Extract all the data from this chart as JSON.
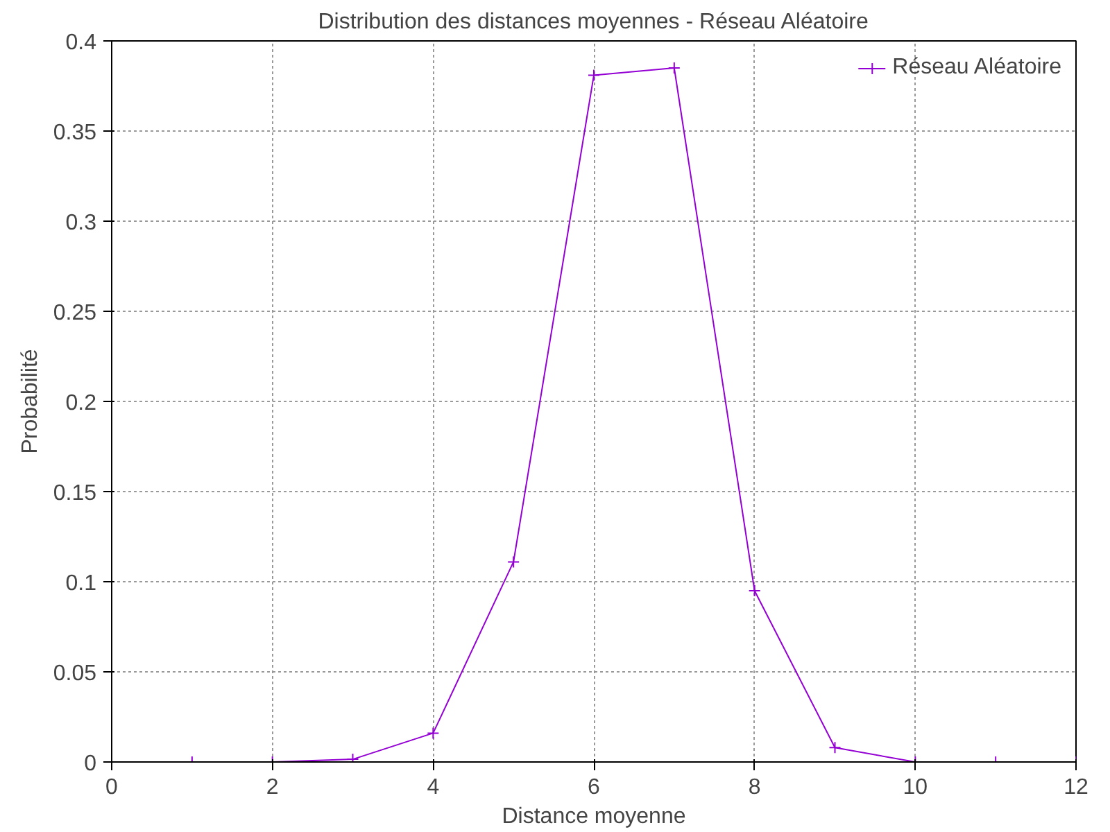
{
  "chart_data": {
    "type": "line",
    "title": "Distribution des distances moyennes - Réseau Aléatoire",
    "xlabel": "Distance moyenne",
    "ylabel": "Probabilité",
    "x": [
      1,
      2,
      3,
      4,
      5,
      6,
      7,
      8,
      9,
      10,
      11,
      12
    ],
    "series": [
      {
        "name": "Réseau Aléatoire",
        "color": "#9400d3",
        "values": [
          0,
          0,
          0.0015,
          0.016,
          0.111,
          0.381,
          0.385,
          0.095,
          0.008,
          0,
          0,
          0
        ]
      }
    ],
    "xlim": [
      0,
      12
    ],
    "xticks": [
      0,
      2,
      4,
      6,
      8,
      10,
      12
    ],
    "ylim": [
      0,
      0.4
    ],
    "yticks": [
      0,
      0.05,
      0.1,
      0.15,
      0.2,
      0.25,
      0.3,
      0.35,
      0.4
    ],
    "grid": true,
    "legend": "top right",
    "marker": "cross",
    "line_style": "solid"
  }
}
